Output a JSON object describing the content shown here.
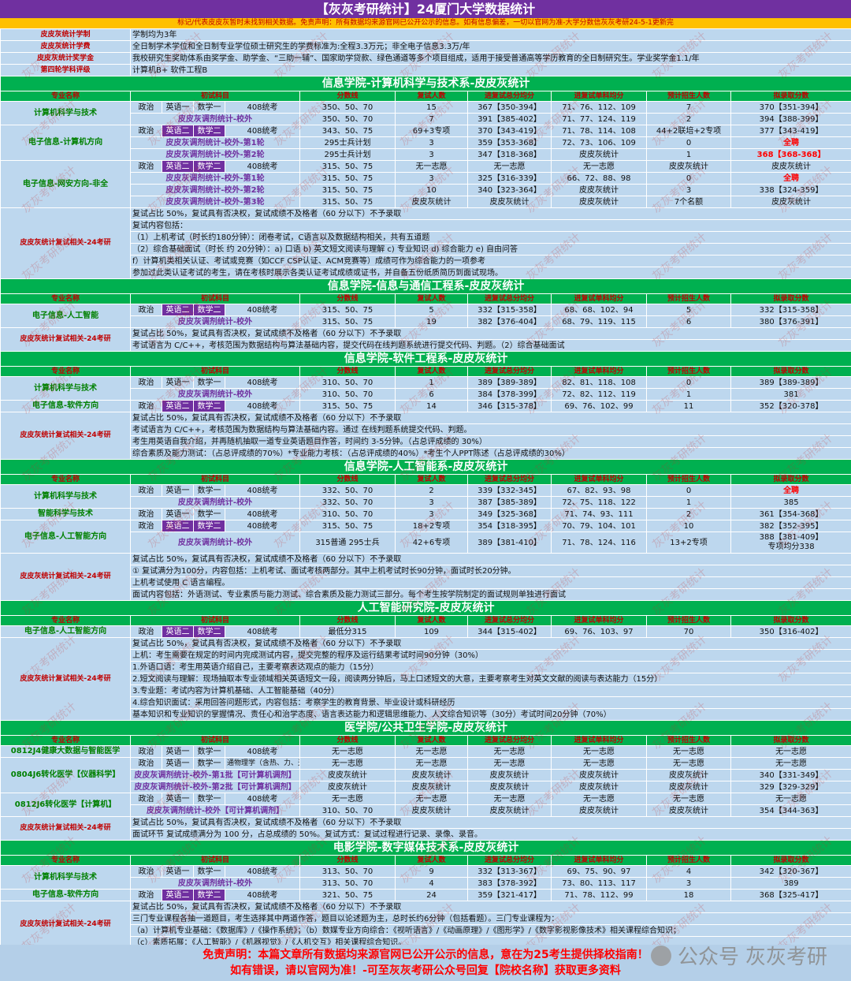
{
  "title": "【灰灰考研统计】24厦门大学数据统计",
  "disclaimer": "标记/代表皮皮灰暂时未找到相关数据。免责声明：所有数据均来源官网已公开公示的信息。如有信息偏差，一切以官网为准-大学分数信灰灰考研24-5-1更新完",
  "info": [
    {
      "label": "皮皮灰统计学制",
      "value": "学制均为3年"
    },
    {
      "label": "皮皮灰统计学费",
      "value": "全日制学术学位和全日制专业学位硕士研究生的学费标准为:全程3.3万元；非全电子信息3.3万/年"
    },
    {
      "label": "皮皮灰统计奖学金",
      "value": "我校研究生奖助体系由奖学金、助学金、“三助一辅”、国家助学贷款、绿色通道等多个项目组成，适用于接受普通高等学历教育的全日制研究生。学业奖学金1.1/年"
    },
    {
      "label": "第四轮学科评级",
      "value": "计算机B+  软件工程B"
    }
  ],
  "headers": [
    "专业名称",
    "初试科目",
    "分数线",
    "复试人数",
    "进复试总分均分",
    "进复试单科均分",
    "预计招生人数",
    "拟录取分数"
  ],
  "retest_label": "皮皮灰统计复试相关-24考研",
  "sections": [
    {
      "title": "信息学院-计算机科学与技术系-皮皮灰统计",
      "hasHeader": false,
      "majors": [
        {
          "name": "计算机科学与技术",
          "rows": [
            {
              "s": [
                "政治",
                "英语一",
                "数学一",
                "408统考"
              ],
              "line": "350、50、70",
              "n": "15",
              "avg": "367【350-394】",
              "single": "71、76、112、109",
              "plan": "7",
              "adm": "370【351-394】"
            },
            {
              "sub": "皮皮灰调剂统计-校外",
              "line": "350、50、70",
              "n": "7",
              "avg": "391【385-402】",
              "single": "71、77、124、119",
              "plan": "2",
              "adm": "394【388-399】"
            }
          ]
        },
        {
          "name": "电子信息-计算机方向",
          "rows": [
            {
              "s": [
                "政治",
                "英语二",
                "数学二",
                "408统考"
              ],
              "line": "343、50、75",
              "n": "69+3专项",
              "avg": "370【343-419】",
              "single": "71、78、114、108",
              "plan": "44+2联培+2专项",
              "adm": "377【343-419】"
            },
            {
              "sub": "皮皮灰调剂统计-校外-第1轮",
              "line": "295士兵计划",
              "n": "3",
              "avg": "359【353-368】",
              "single": "72、73、106、109",
              "plan": "0",
              "adm": "全聘",
              "admRed": true
            },
            {
              "sub": "皮皮灰调剂统计-校外-第2轮",
              "line": "295士兵计划",
              "n": "3",
              "avg": "347【318-368】",
              "single": "皮皮灰统计",
              "plan": "1",
              "adm": "368【368-368】",
              "admRed": true
            }
          ]
        },
        {
          "name": "电子信息-网安方向-非全",
          "rows": [
            {
              "s": [
                "政治",
                "英语二",
                "数学二",
                "408统考"
              ],
              "line": "315、50、75",
              "n": "无一志愿",
              "avg": "无一志愿",
              "single": "无一志愿",
              "plan": "皮皮灰统计",
              "adm": "皮皮灰统计"
            },
            {
              "sub": "皮皮灰调剂统计-校外-第1轮",
              "line": "315、50、75",
              "n": "3",
              "avg": "325【316-339】",
              "single": "66、72、88、98",
              "plan": "0",
              "adm": "全聘",
              "admRed": true
            },
            {
              "sub": "皮皮灰调剂统计-校外-第2轮",
              "line": "315、50、75",
              "n": "10",
              "avg": "340【323-364】",
              "single": "皮皮灰统计",
              "plan": "3",
              "adm": "338【324-359】"
            },
            {
              "sub": "皮皮灰调剂统计-校外-第3轮",
              "line": "315、50、75",
              "n": "皮皮灰统计",
              "avg": "皮皮灰统计",
              "single": "皮皮灰统计",
              "plan": "7个名额",
              "adm": "皮皮灰统计"
            }
          ]
        }
      ],
      "notes": [
        "复试占比 50%，复试具有否决权，复试成绩不及格者（60 分以下）不予录取",
        "复试内容包括：",
        "（1）上机考试（时长约180分钟）：闭卷考试，C语言以及数据结构相关，共有五道题",
        "（2）综合基础面试（时长 约 20分钟）：a) 口语  b) 英文短文阅读与理解 c) 专业知识 d) 综合能力 e) 自由问答",
        "f）计算机类相关认证、考试或竞赛（如CCF CSP认证、ACM竞赛等）成绩可作为综合能力的一项参考",
        "参加过此类认证考试的考生，请在考核时展示各类认证考试成绩或证书，并自备五份纸质简历到面试现场。"
      ]
    },
    {
      "title": "信息学院-信息与通信工程系-皮皮灰统计",
      "hasHeader": true,
      "majors": [
        {
          "name": "电子信息-人工智能",
          "rows": [
            {
              "s": [
                "政治",
                "英语二",
                "数学二",
                "408统考"
              ],
              "line": "315、50、75",
              "n": "5",
              "avg": "332【315-358】",
              "single": "68、68、102、94",
              "plan": "5",
              "adm": "332【315-358】"
            },
            {
              "sub": "皮皮灰调剂统计-校外",
              "line": "315、50、75",
              "n": "19",
              "avg": "382【376-404】",
              "single": "68、79、119、115",
              "plan": "6",
              "adm": "380【376-391】"
            }
          ]
        }
      ],
      "notes": [
        "复试占比 50%，复试具有否决权，复试成绩不及格者（60 分以下）不予录取",
        "考试语言为 C/C++，考核范围为数据结构与算法基础内容，提交代码在线判题系统进行提交代码、判题。（2）综合基础面试"
      ]
    },
    {
      "title": "信息学院-软件工程系-皮皮灰统计",
      "hasHeader": true,
      "majors": [
        {
          "name": "计算机科学与技术",
          "rows": [
            {
              "s": [
                "政治",
                "英语一",
                "数学一",
                "408统考"
              ],
              "line": "310、50、70",
              "n": "1",
              "avg": "389【389-389】",
              "single": "82、81、118、108",
              "plan": "0",
              "adm": "389【389-389】"
            },
            {
              "sub": "皮皮灰调剂统计-校外",
              "line": "310、50、70",
              "n": "6",
              "avg": "384【378-399】",
              "single": "72、82、112、119",
              "plan": "1",
              "adm": "381"
            }
          ]
        },
        {
          "name": "电子信息-软件方向",
          "rows": [
            {
              "s": [
                "政治",
                "英语二",
                "数学二",
                "408统考"
              ],
              "line": "315、50、75",
              "n": "14",
              "avg": "346【315-378】",
              "single": "69、76、102、99",
              "plan": "11",
              "adm": "352【320-378】"
            }
          ]
        }
      ],
      "notes": [
        "复试占比 50%，复试具有否决权，复试成绩不及格者（60 分以下）不予录取",
        "考试语言为 C/C++，考核范围为数据结构与算法基础内容。通过 在线判题系统提交代码、判题。",
        "考生用英语自我介绍，并再随机抽取一道专业英语题目作答，时间约 3-5分钟。（占总评成绩的 30%）",
        "综合素质及能力测试：（占总评成绩的70%）*专业能力考核：（占总评成绩的40%）*考生个人PPT陈述（占总评成绩的30%）"
      ]
    },
    {
      "title": "信息学院-人工智能系-皮皮灰统计",
      "hasHeader": true,
      "majors": [
        {
          "name": "计算机科学与技术",
          "rows": [
            {
              "s": [
                "政治",
                "英语一",
                "数学一",
                "408统考"
              ],
              "line": "332、50、70",
              "n": "2",
              "avg": "339【332-345】",
              "single": "67、82、93、98",
              "plan": "0",
              "adm": "全聘",
              "admRed": true
            },
            {
              "sub": "皮皮灰调剂统计-校外",
              "line": "332、50、70",
              "n": "3",
              "avg": "387【385-389】",
              "single": "72、75、118、122",
              "plan": "1",
              "adm": "385"
            }
          ]
        },
        {
          "name": "智能科学与技术",
          "rows": [
            {
              "s": [
                "政治",
                "英语一",
                "数学一",
                "408统考"
              ],
              "line": "310、50、70",
              "n": "3",
              "avg": "349【325-368】",
              "single": "71、74、93、111",
              "plan": "2",
              "adm": "361【354-368】"
            }
          ]
        },
        {
          "name": "电子信息-人工智能方向",
          "rows": [
            {
              "s": [
                "政治",
                "英语二",
                "数学二",
                "408统考"
              ],
              "line": "315、50、75",
              "n": "18+2专项",
              "avg": "354【318-395】",
              "single": "70、79、104、101",
              "plan": "10",
              "adm": "382【352-395】"
            },
            {
              "sub": "皮皮灰调剂统计-校外",
              "line": "315普通 295士兵",
              "n": "42+6专项",
              "avg": "389【381-410】",
              "single": "71、78、124、116",
              "plan": "13+2专项",
              "adm": "388【381-409】",
              "adm2": "专项均分338",
              "tall": true
            }
          ]
        }
      ],
      "notes": [
        "复试占比 50%，复试具有否决权，复试成绩不及格者（60 分以下）不予录取",
        "① 复试满分为100分，内容包括：上机考试、面试考核两部分。其中上机考试时长90分钟，面试时长20分钟。",
        "上机考试使用 C 语言编程。",
        "面试内容包括：外语测试、专业素质与能力测试、综合素质及能力测试三部分。每个考生按学院制定的面试规则单独进行面试"
      ]
    },
    {
      "title": "人工智能研究院-皮皮灰统计",
      "hasHeader": true,
      "majors": [
        {
          "name": "电子信息-人工智能方向",
          "rows": [
            {
              "s": [
                "政治",
                "英语二",
                "数学二",
                "408统考"
              ],
              "line": "最低分315",
              "n": "109",
              "avg": "344【315-402】",
              "single": "69、76、103、97",
              "plan": "70",
              "adm": "350【316-402】"
            }
          ]
        }
      ],
      "notes": [
        "复试占比 50%，复试具有否决权，复试成绩不及格者（60 分以下）不予录取",
        "上机：考生需要在规定的时间内完成测试内容，提交完整的程序及运行结果考试时间90分钟（30%）",
        "1.外语口语：考生用英语介绍自己，主要考察表达观点的能力（15分）",
        "2.短文阅读与理解：现场抽取本专业领域相关英语短文一段，阅读两分钟后，马上口述短文的大意，主要考察考生对英文文献的阅读与表达能力（15分）",
        "3.专业题：考试内容为计算机基础、人工智能基础（40分）",
        "4.综合知识面试：采用回答问题形式，内容包括：考察学生的教育背景、毕业设计或科研经历",
        "基本知识和专业知识的掌握情况、责任心和治学态度、语言表达能力和逻辑思维能力、人文综合知识等（30分）考试时间20分钟（70%）"
      ]
    },
    {
      "title": "医学院/公共卫生学院-皮皮灰统计",
      "hasHeader": true,
      "majors": [
        {
          "name": "0812J4健康大数据与智能医学",
          "rows": [
            {
              "s": [
                "政治",
                "英语一",
                "数学一",
                "408统考"
              ],
              "line": "无一志愿",
              "n": "无一志愿",
              "avg": "无一志愿",
              "single": "无一志愿",
              "plan": "无一志愿",
              "adm": "无一志愿"
            }
          ]
        },
        {
          "name": "0804J6转化医学【仪器科学】",
          "rows": [
            {
              "s": [
                "政治",
                "英语一",
                "数学一",
                "通物理学（含热、力、光、电"
              ],
              "line": "无一志愿",
              "n": "无一志愿",
              "avg": "无一志愿",
              "single": "无一志愿",
              "plan": "无一志愿",
              "adm": "无一志愿"
            },
            {
              "sub": "皮皮灰调剂统计-校外-第1批【可计算机调剂】",
              "line": "皮皮灰统计",
              "n": "皮皮灰统计",
              "avg": "皮皮灰统计",
              "single": "皮皮灰统计",
              "plan": "皮皮灰统计",
              "adm": "340【331-349】"
            },
            {
              "sub": "皮皮灰调剂统计-校外-第2批【可计算机调剂】",
              "line": "皮皮灰统计",
              "n": "皮皮灰统计",
              "avg": "皮皮灰统计",
              "single": "皮皮灰统计",
              "plan": "皮皮灰统计",
              "adm": "329【329-329】"
            }
          ]
        },
        {
          "name": "0812J6转化医学【计算机】",
          "rows": [
            {
              "s": [
                "政治",
                "英语一",
                "数学一",
                "408统考"
              ],
              "line": "无一志愿",
              "n": "无一志愿",
              "avg": "无一志愿",
              "single": "无一志愿",
              "plan": "无一志愿",
              "adm": "无一志愿"
            },
            {
              "sub": "皮皮灰调剂统计-校外【可计算机调剂】",
              "line": "310、50、70",
              "n": "皮皮灰统计",
              "avg": "皮皮灰统计",
              "single": "皮皮灰统计",
              "plan": "皮皮灰统计",
              "adm": "354【344-363】"
            }
          ]
        }
      ],
      "notes": [
        "复试占比 50%，复试具有否决权，复试成绩不及格者（60 分以下）不予录取",
        "面试环节 复试成绩满分为 100 分，占总成绩的 50%。复试方式：复试过程进行记录、录像、录音。"
      ]
    },
    {
      "title": "电影学院-数字媒体技术系-皮皮灰统计",
      "hasHeader": true,
      "majors": [
        {
          "name": "计算机科学与技术",
          "rows": [
            {
              "s": [
                "政治",
                "英语一",
                "数学一",
                "408统考"
              ],
              "line": "313、50、70",
              "n": "9",
              "avg": "332【313-367】",
              "single": "69、75、90、97",
              "plan": "4",
              "adm": "342【320-367】"
            },
            {
              "sub": "皮皮灰调剂统计-校外",
              "line": "313、50、70",
              "n": "4",
              "avg": "383【378-392】",
              "single": "73、80、113、117",
              "plan": "3",
              "adm": "389"
            }
          ]
        },
        {
          "name": "电子信息-软件方向",
          "rows": [
            {
              "s": [
                "政治",
                "英语二",
                "数学二",
                "408统考"
              ],
              "line": "321、50、75",
              "n": "24",
              "avg": "359【321-417】",
              "single": "71、78、112、99",
              "plan": "18",
              "adm": "368【325-417】"
            }
          ]
        }
      ],
      "notes": [
        "复试占比 50%，复试具有否决权，复试成绩不及格者（60 分以下）不予录取",
        "三门专业课程各抽一道题目，考生选择其中两道作答，题目以论述题为主，总时长约6分钟（包括看题）。三门专业课程为：",
        "（a）计算机专业基础：《数据库》/《操作系统》；（b）数媒专业方向综合：《视听语言》/《动画原理》/《图形学》/《数字影视影像技术》相关课程综合知识；",
        "（c）素质拓展：《人工智能》/《机器视觉》/《人机交互》相关课程综合知识。"
      ]
    }
  ],
  "footer": {
    "line1": "免责声明：本篇文章所有数据均来源官网已公开公示的信息，意在为25考生提供择校指南！",
    "line2": "如有错误，请以官网为准！-可至灰灰考研公众号回复【院校名称】获取更多资料"
  },
  "watermark": {
    "text1": "公众号",
    "text2": "灰灰考研",
    "repeat": "灰灰考研统计"
  }
}
